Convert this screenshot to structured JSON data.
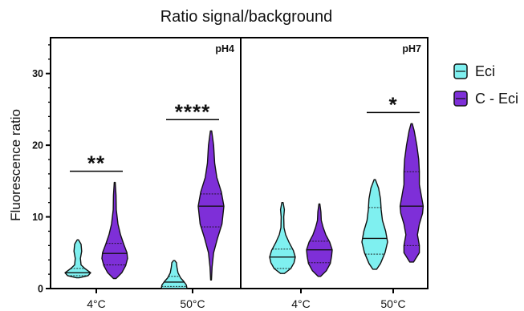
{
  "chart_data": {
    "type": "violin",
    "title": "Ratio signal/background",
    "ylabel": "Fluorescence ratio",
    "ylim": [
      0,
      35
    ],
    "yticks": [
      0,
      10,
      20,
      30
    ],
    "legend": {
      "placement": "right",
      "entries": [
        {
          "label": "Eci",
          "color": "#7ff0f0"
        },
        {
          "label": "C - Eci",
          "color": "#7e2fd8"
        }
      ]
    },
    "panels": [
      {
        "label": "pH4",
        "groups": [
          {
            "x_label": "4°C",
            "significance": "**",
            "violins": [
              {
                "series": "Eci",
                "min": 1.5,
                "max": 6.8,
                "median": 2.2,
                "q1": 1.8,
                "q3": 2.8,
                "profile": [
                  [
                    1.5,
                    0.1
                  ],
                  [
                    1.8,
                    0.8
                  ],
                  [
                    2.2,
                    1.0
                  ],
                  [
                    2.8,
                    0.55
                  ],
                  [
                    3.3,
                    0.25
                  ],
                  [
                    4.2,
                    0.2
                  ],
                  [
                    5.2,
                    0.3
                  ],
                  [
                    6.2,
                    0.25
                  ],
                  [
                    6.8,
                    0.05
                  ]
                ]
              },
              {
                "series": "C - Eci",
                "min": 1.4,
                "max": 14.8,
                "median": 4.9,
                "q1": 3.3,
                "q3": 6.3,
                "profile": [
                  [
                    1.4,
                    0.1
                  ],
                  [
                    2.2,
                    0.55
                  ],
                  [
                    3.2,
                    0.85
                  ],
                  [
                    4.2,
                    1.0
                  ],
                  [
                    5.0,
                    0.95
                  ],
                  [
                    6.2,
                    0.7
                  ],
                  [
                    7.5,
                    0.45
                  ],
                  [
                    9.0,
                    0.25
                  ],
                  [
                    11.0,
                    0.12
                  ],
                  [
                    13.0,
                    0.1
                  ],
                  [
                    14.8,
                    0.04
                  ]
                ]
              }
            ]
          },
          {
            "x_label": "50°C",
            "significance": "****",
            "violins": [
              {
                "series": "Eci",
                "min": 0,
                "max": 3.9,
                "median": 0.9,
                "q1": 0.3,
                "q3": 1.7,
                "profile": [
                  [
                    0,
                    1.0
                  ],
                  [
                    0.5,
                    0.95
                  ],
                  [
                    1.0,
                    0.75
                  ],
                  [
                    1.5,
                    0.5
                  ],
                  [
                    2.2,
                    0.3
                  ],
                  [
                    3.0,
                    0.22
                  ],
                  [
                    3.6,
                    0.18
                  ],
                  [
                    3.9,
                    0.05
                  ]
                ]
              },
              {
                "series": "C - Eci",
                "min": 1.2,
                "max": 22.0,
                "median": 11.5,
                "q1": 8.6,
                "q3": 13.2,
                "profile": [
                  [
                    1.2,
                    0.03
                  ],
                  [
                    3.0,
                    0.08
                  ],
                  [
                    5.0,
                    0.2
                  ],
                  [
                    7.0,
                    0.5
                  ],
                  [
                    9.0,
                    0.85
                  ],
                  [
                    11.5,
                    1.0
                  ],
                  [
                    13.5,
                    0.8
                  ],
                  [
                    15.5,
                    0.45
                  ],
                  [
                    17.5,
                    0.28
                  ],
                  [
                    20.0,
                    0.2
                  ],
                  [
                    22.0,
                    0.05
                  ]
                ]
              }
            ]
          }
        ]
      },
      {
        "label": "pH7",
        "groups": [
          {
            "x_label": "4°C",
            "significance": "",
            "violins": [
              {
                "series": "Eci",
                "min": 2.1,
                "max": 12.0,
                "median": 4.4,
                "q1": 2.8,
                "q3": 5.5,
                "profile": [
                  [
                    2.1,
                    0.15
                  ],
                  [
                    2.8,
                    0.65
                  ],
                  [
                    3.6,
                    0.9
                  ],
                  [
                    4.4,
                    1.0
                  ],
                  [
                    5.3,
                    0.85
                  ],
                  [
                    6.5,
                    0.5
                  ],
                  [
                    7.5,
                    0.25
                  ],
                  [
                    8.5,
                    0.12
                  ],
                  [
                    10.0,
                    0.1
                  ],
                  [
                    11.0,
                    0.15
                  ],
                  [
                    12.0,
                    0.05
                  ]
                ]
              },
              {
                "series": "C - Eci",
                "min": 1.7,
                "max": 11.8,
                "median": 5.4,
                "q1": 3.6,
                "q3": 6.6,
                "profile": [
                  [
                    1.7,
                    0.1
                  ],
                  [
                    2.5,
                    0.55
                  ],
                  [
                    3.5,
                    0.85
                  ],
                  [
                    4.5,
                    0.95
                  ],
                  [
                    5.4,
                    1.0
                  ],
                  [
                    6.5,
                    0.8
                  ],
                  [
                    7.5,
                    0.5
                  ],
                  [
                    8.5,
                    0.3
                  ],
                  [
                    9.5,
                    0.15
                  ],
                  [
                    10.7,
                    0.12
                  ],
                  [
                    11.8,
                    0.04
                  ]
                ]
              }
            ]
          },
          {
            "x_label": "50°C",
            "significance": "*",
            "violins": [
              {
                "series": "Eci",
                "min": 2.7,
                "max": 15.2,
                "median": 7.0,
                "q1": 4.8,
                "q3": 11.3,
                "profile": [
                  [
                    2.7,
                    0.15
                  ],
                  [
                    3.5,
                    0.45
                  ],
                  [
                    5.0,
                    0.8
                  ],
                  [
                    6.5,
                    1.0
                  ],
                  [
                    8.0,
                    0.85
                  ],
                  [
                    9.5,
                    0.6
                  ],
                  [
                    11.0,
                    0.5
                  ],
                  [
                    12.5,
                    0.45
                  ],
                  [
                    14.0,
                    0.3
                  ],
                  [
                    15.2,
                    0.05
                  ]
                ]
              },
              {
                "series": "C - Eci",
                "min": 3.7,
                "max": 23.0,
                "median": 11.5,
                "q1": 6.0,
                "q3": 16.3,
                "profile": [
                  [
                    3.7,
                    0.15
                  ],
                  [
                    5.0,
                    0.6
                  ],
                  [
                    6.0,
                    0.6
                  ],
                  [
                    7.5,
                    0.45
                  ],
                  [
                    9.0,
                    0.6
                  ],
                  [
                    10.5,
                    0.85
                  ],
                  [
                    11.5,
                    0.9
                  ],
                  [
                    13.0,
                    0.75
                  ],
                  [
                    14.5,
                    0.6
                  ],
                  [
                    16.3,
                    0.6
                  ],
                  [
                    18.0,
                    0.55
                  ],
                  [
                    20.0,
                    0.4
                  ],
                  [
                    22.0,
                    0.2
                  ],
                  [
                    23.0,
                    0.05
                  ]
                ]
              }
            ]
          }
        ]
      }
    ]
  }
}
